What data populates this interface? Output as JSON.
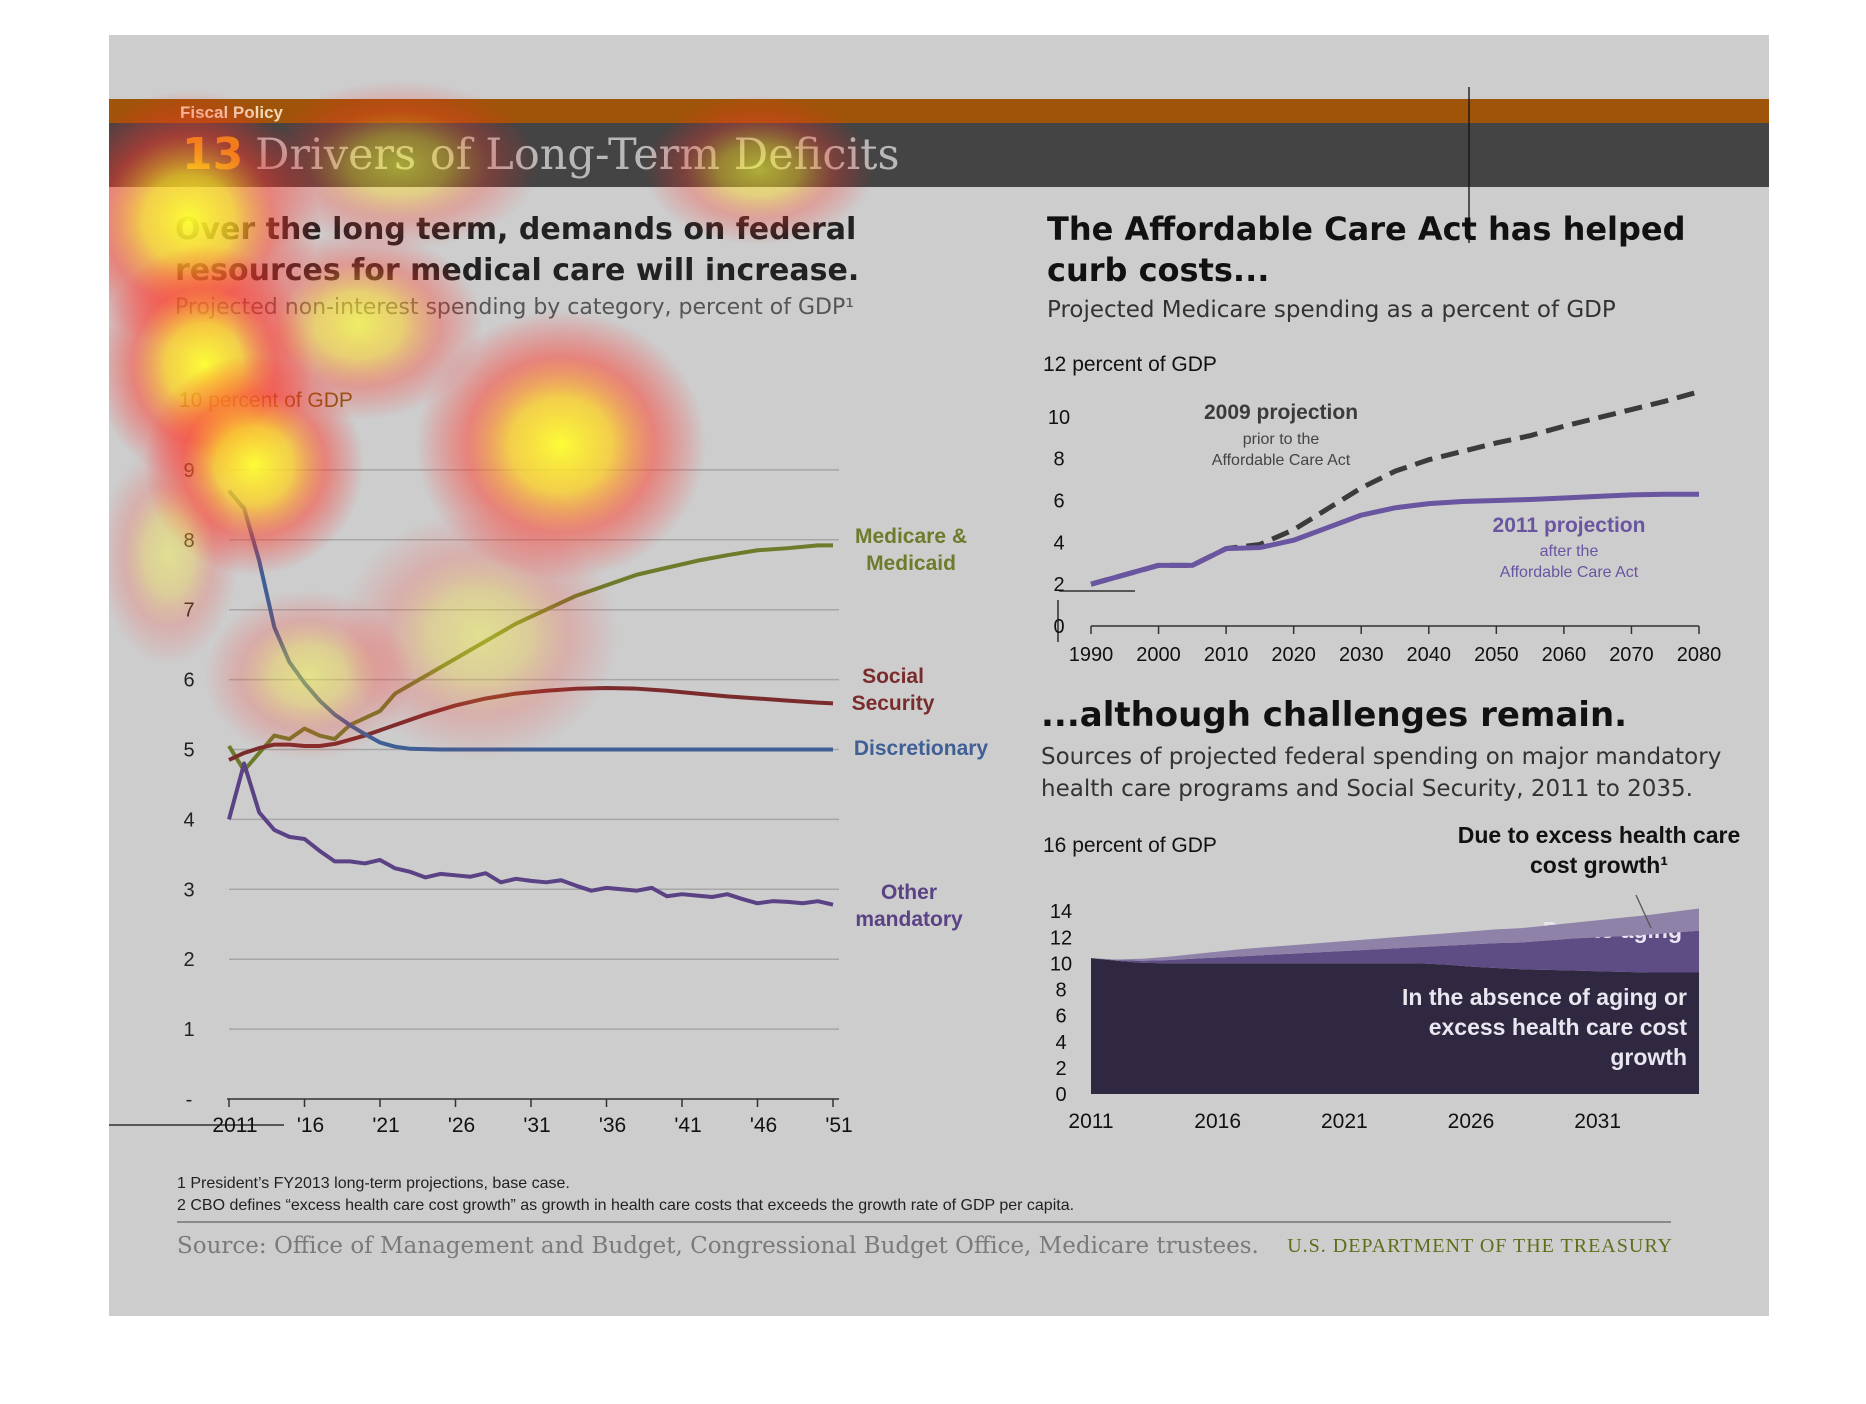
{
  "header": {
    "section": "Fiscal Policy",
    "number": "13",
    "title": "Drivers of Long-Term Deficits"
  },
  "left_panel": {
    "heading": "Over the long term, demands on federal resources for medical care will increase.",
    "subtitle": "Projected non-interest spending by category, percent of GDP¹"
  },
  "right_top_panel": {
    "heading": "The Affordable Care Act has helped curb costs...",
    "subtitle": "Projected Medicare spending as a percent of GDP"
  },
  "right_bottom_panel": {
    "heading": "...although challenges remain.",
    "subtitle": "Sources of projected federal spending on major mandatory health care programs and Social Security, 2011 to 2035."
  },
  "footnotes": [
    "1 President’s FY2013 long-term projections, base case.",
    "2 CBO defines “excess health care cost growth” as growth in health care costs that exceeds the growth rate of GDP per capita."
  ],
  "source": "Source: Office of Management and Budget, Congressional Budget Office, Medicare trustees.",
  "agency": "U.S. DEPARTMENT OF THE TREASURY",
  "colors": {
    "medicare": "#6e7b2a",
    "social_security": "#7a2c2c",
    "discretionary": "#3f5f95",
    "other_mandatory": "#5a4285",
    "proj_2009": "#3b3b3b",
    "proj_2011": "#6a55a0",
    "area_base": "#302840",
    "area_aging": "#5e4d85",
    "area_excess": "#8e82a8",
    "band": "#a0540a",
    "titlebar": "#444444"
  },
  "chart_data": [
    {
      "type": "line",
      "title": "",
      "ylabel": "10 percent of GDP",
      "ylim": [
        0,
        10
      ],
      "yticks": [
        "-",
        "1",
        "2",
        "3",
        "4",
        "5",
        "6",
        "7",
        "8",
        "9"
      ],
      "xlim": [
        2011,
        2051
      ],
      "xticks": [
        {
          "x": 2011,
          "label": "2011"
        },
        {
          "x": 2016,
          "label": "'16"
        },
        {
          "x": 2021,
          "label": "'21"
        },
        {
          "x": 2026,
          "label": "'26"
        },
        {
          "x": 2031,
          "label": "'31"
        },
        {
          "x": 2036,
          "label": "'36"
        },
        {
          "x": 2041,
          "label": "'41"
        },
        {
          "x": 2046,
          "label": "'46"
        },
        {
          "x": 2051,
          "label": "'51"
        }
      ],
      "grid": true,
      "series": [
        {
          "name": "Medicare & Medicaid",
          "label_lines": [
            "Medicare &",
            "Medicaid"
          ],
          "color_key": "medicare",
          "x": [
            2011,
            2012,
            2013,
            2014,
            2015,
            2016,
            2017,
            2018,
            2019,
            2020,
            2021,
            2022,
            2024,
            2026,
            2028,
            2030,
            2032,
            2034,
            2036,
            2038,
            2040,
            2042,
            2044,
            2046,
            2048,
            2050,
            2051
          ],
          "y": [
            5.05,
            4.7,
            4.95,
            5.2,
            5.15,
            5.3,
            5.2,
            5.15,
            5.35,
            5.45,
            5.55,
            5.8,
            6.05,
            6.3,
            6.55,
            6.8,
            7.0,
            7.2,
            7.35,
            7.5,
            7.6,
            7.7,
            7.78,
            7.85,
            7.88,
            7.92,
            7.92
          ]
        },
        {
          "name": "Social Security",
          "label_lines": [
            "Social",
            "Security"
          ],
          "color_key": "social_security",
          "x": [
            2011,
            2012,
            2013,
            2014,
            2015,
            2016,
            2017,
            2018,
            2020,
            2022,
            2024,
            2026,
            2028,
            2030,
            2032,
            2034,
            2036,
            2038,
            2040,
            2042,
            2044,
            2046,
            2048,
            2050,
            2051
          ],
          "y": [
            4.85,
            4.95,
            5.02,
            5.07,
            5.07,
            5.05,
            5.05,
            5.08,
            5.2,
            5.35,
            5.5,
            5.63,
            5.73,
            5.8,
            5.84,
            5.87,
            5.88,
            5.87,
            5.84,
            5.8,
            5.76,
            5.73,
            5.7,
            5.67,
            5.66
          ]
        },
        {
          "name": "Discretionary",
          "label_lines": [
            "Discretionary"
          ],
          "color_key": "discretionary",
          "x": [
            2011,
            2012,
            2013,
            2014,
            2015,
            2016,
            2017,
            2018,
            2019,
            2020,
            2021,
            2022,
            2023,
            2025,
            2028,
            2051
          ],
          "y": [
            8.7,
            8.45,
            7.7,
            6.75,
            6.25,
            5.95,
            5.7,
            5.5,
            5.35,
            5.22,
            5.1,
            5.04,
            5.01,
            5.0,
            5.0,
            5.0
          ]
        },
        {
          "name": "Other mandatory",
          "label_lines": [
            "Other",
            "mandatory"
          ],
          "color_key": "other_mandatory",
          "x": [
            2011,
            2012,
            2013,
            2014,
            2015,
            2016,
            2017,
            2018,
            2019,
            2020,
            2021,
            2022,
            2023,
            2024,
            2025,
            2026,
            2027,
            2028,
            2029,
            2030,
            2031,
            2032,
            2033,
            2034,
            2035,
            2036,
            2037,
            2038,
            2039,
            2040,
            2041,
            2042,
            2043,
            2044,
            2045,
            2046,
            2047,
            2048,
            2049,
            2050,
            2051
          ],
          "y": [
            4.0,
            4.8,
            4.1,
            3.85,
            3.75,
            3.72,
            3.55,
            3.4,
            3.4,
            3.37,
            3.42,
            3.3,
            3.25,
            3.17,
            3.22,
            3.2,
            3.18,
            3.23,
            3.1,
            3.15,
            3.12,
            3.1,
            3.13,
            3.05,
            2.98,
            3.02,
            3.0,
            2.98,
            3.02,
            2.9,
            2.93,
            2.91,
            2.89,
            2.93,
            2.86,
            2.8,
            2.83,
            2.82,
            2.8,
            2.83,
            2.78
          ]
        }
      ]
    },
    {
      "type": "line",
      "title": "",
      "ylabel": "12 percent of GDP",
      "ylim": [
        0,
        12
      ],
      "yticks": [
        "0",
        "2",
        "4",
        "6",
        "8",
        "10"
      ],
      "xlim": [
        1990,
        2080
      ],
      "xticks": [
        "1990",
        "2000",
        "2010",
        "2020",
        "2030",
        "2040",
        "2050",
        "2060",
        "2070",
        "2080"
      ],
      "grid": false,
      "series": [
        {
          "name": "2009 projection",
          "annotation": [
            "prior to the",
            "Affordable Care Act"
          ],
          "style": "dashed",
          "color_key": "proj_2009",
          "x": [
            1990,
            2000,
            2005,
            2010,
            2015,
            2020,
            2025,
            2030,
            2035,
            2040,
            2045,
            2050,
            2055,
            2060,
            2065,
            2070,
            2075,
            2080
          ],
          "y": [
            2.0,
            2.9,
            2.9,
            3.7,
            3.9,
            4.6,
            5.6,
            6.6,
            7.4,
            7.95,
            8.35,
            8.75,
            9.1,
            9.55,
            9.95,
            10.35,
            10.75,
            11.2
          ]
        },
        {
          "name": "2011 projection",
          "annotation": [
            "after the",
            "Affordable Care Act"
          ],
          "style": "solid",
          "color_key": "proj_2011",
          "x": [
            1990,
            2000,
            2005,
            2010,
            2015,
            2020,
            2025,
            2030,
            2035,
            2040,
            2045,
            2050,
            2055,
            2060,
            2065,
            2070,
            2075,
            2080
          ],
          "y": [
            2.0,
            2.9,
            2.9,
            3.7,
            3.75,
            4.1,
            4.7,
            5.3,
            5.65,
            5.85,
            5.95,
            6.0,
            6.05,
            6.12,
            6.2,
            6.27,
            6.3,
            6.3
          ]
        }
      ]
    },
    {
      "type": "area",
      "title": "",
      "ylabel": "16 percent of GDP",
      "ylim": [
        0,
        16
      ],
      "yticks": [
        "0",
        "2",
        "4",
        "6",
        "8",
        "10",
        "12",
        "14"
      ],
      "xlim": [
        2011,
        2035
      ],
      "xticks": [
        "2011",
        "2016",
        "2021",
        "2026",
        "2031"
      ],
      "stacked": true,
      "x": [
        2011,
        2012,
        2013,
        2014,
        2015,
        2016,
        2017,
        2018,
        2019,
        2020,
        2021,
        2022,
        2023,
        2024,
        2025,
        2026,
        2027,
        2028,
        2029,
        2030,
        2031,
        2032,
        2033,
        2034,
        2035
      ],
      "series": [
        {
          "name": "In the absence of aging or excess health care cost growth",
          "label_lines": [
            "In the absence of aging or",
            "excess health care cost",
            "growth"
          ],
          "color_key": "area_base",
          "values": [
            10.4,
            10.2,
            10.05,
            10.0,
            10.0,
            10.0,
            10.0,
            10.0,
            10.0,
            10.0,
            10.0,
            10.0,
            10.0,
            10.0,
            9.9,
            9.75,
            9.65,
            9.55,
            9.5,
            9.45,
            9.4,
            9.35,
            9.3,
            9.3,
            9.3
          ]
        },
        {
          "name": "Due to aging",
          "label_lines": [
            "Due to aging"
          ],
          "color_key": "area_aging",
          "values": [
            0.0,
            0.05,
            0.15,
            0.25,
            0.35,
            0.45,
            0.55,
            0.65,
            0.75,
            0.85,
            0.95,
            1.05,
            1.15,
            1.25,
            1.45,
            1.7,
            1.9,
            2.05,
            2.25,
            2.45,
            2.6,
            2.75,
            2.9,
            3.05,
            3.2
          ]
        },
        {
          "name": "Due to excess health care cost growth¹",
          "label_lines": [
            "Due to excess  health care",
            "cost growth¹"
          ],
          "color_key": "area_excess",
          "values": [
            0.0,
            0.05,
            0.15,
            0.25,
            0.35,
            0.45,
            0.55,
            0.6,
            0.65,
            0.7,
            0.75,
            0.8,
            0.85,
            0.9,
            0.95,
            1.0,
            1.05,
            1.1,
            1.15,
            1.2,
            1.3,
            1.4,
            1.5,
            1.6,
            1.7
          ]
        }
      ]
    }
  ]
}
